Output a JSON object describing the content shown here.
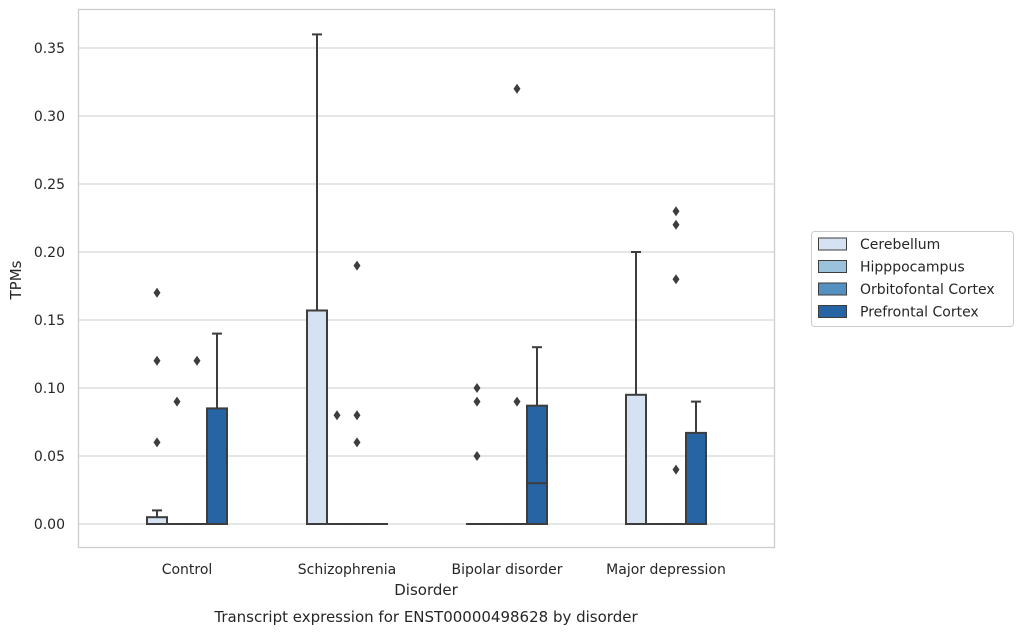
{
  "chart_data": {
    "type": "box",
    "title": "",
    "caption": "Transcript expression for ENST00000498628 by disorder",
    "xlabel": "Disorder",
    "ylabel": "TPMs",
    "ylim": [
      -0.017,
      0.378
    ],
    "yticks": [
      0.0,
      0.05,
      0.1,
      0.15,
      0.2,
      0.25,
      0.3,
      0.35
    ],
    "ytick_labels": [
      "0.00",
      "0.05",
      "0.10",
      "0.15",
      "0.20",
      "0.25",
      "0.30",
      "0.35"
    ],
    "grid": "horizontal",
    "legend_placement": "right",
    "categories": [
      "Control",
      "Schizophrenia",
      "Bipolar disorder",
      "Major depression"
    ],
    "series": [
      {
        "name": "Cerebellum",
        "color": "#d4e2f1",
        "boxes": [
          {
            "q1": 0.0,
            "median": 0.0,
            "q3": 0.005,
            "whisker_low": 0.0,
            "whisker_high": 0.01,
            "outliers": [
              0.06,
              0.12,
              0.17
            ]
          },
          {
            "q1": 0.0,
            "median": 0.0,
            "q3": 0.157,
            "whisker_low": 0.0,
            "whisker_high": 0.36,
            "outliers": []
          },
          {
            "q1": 0.0,
            "median": 0.0,
            "q3": 0.0,
            "whisker_low": 0.0,
            "whisker_high": 0.0,
            "outliers": [
              0.05,
              0.09,
              0.1
            ]
          },
          {
            "q1": 0.0,
            "median": 0.0,
            "q3": 0.095,
            "whisker_low": 0.0,
            "whisker_high": 0.2,
            "outliers": []
          }
        ]
      },
      {
        "name": "Hipppocampus",
        "color": "#9bc2db",
        "boxes": [
          {
            "q1": 0.0,
            "median": 0.0,
            "q3": 0.0,
            "whisker_low": 0.0,
            "whisker_high": 0.0,
            "outliers": [
              0.09
            ]
          },
          {
            "q1": 0.0,
            "median": 0.0,
            "q3": 0.0,
            "whisker_low": 0.0,
            "whisker_high": 0.0,
            "outliers": [
              0.08
            ]
          },
          {
            "q1": 0.0,
            "median": 0.0,
            "q3": 0.0,
            "whisker_low": 0.0,
            "whisker_high": 0.0,
            "outliers": []
          },
          {
            "q1": 0.0,
            "median": 0.0,
            "q3": 0.0,
            "whisker_low": 0.0,
            "whisker_high": 0.0,
            "outliers": []
          }
        ]
      },
      {
        "name": "Orbitofontal Cortex",
        "color": "#5591c0",
        "boxes": [
          {
            "q1": 0.0,
            "median": 0.0,
            "q3": 0.0,
            "whisker_low": 0.0,
            "whisker_high": 0.0,
            "outliers": [
              0.12
            ]
          },
          {
            "q1": 0.0,
            "median": 0.0,
            "q3": 0.0,
            "whisker_low": 0.0,
            "whisker_high": 0.0,
            "outliers": [
              0.06,
              0.08,
              0.19
            ]
          },
          {
            "q1": 0.0,
            "median": 0.0,
            "q3": 0.0,
            "whisker_low": 0.0,
            "whisker_high": 0.0,
            "outliers": [
              0.09,
              0.32
            ]
          },
          {
            "q1": 0.0,
            "median": 0.0,
            "q3": 0.0,
            "whisker_low": 0.0,
            "whisker_high": 0.0,
            "outliers": [
              0.04,
              0.18,
              0.22,
              0.23
            ]
          }
        ]
      },
      {
        "name": "Prefrontal Cortex",
        "color": "#2764a3",
        "boxes": [
          {
            "q1": 0.0,
            "median": 0.0,
            "q3": 0.085,
            "whisker_low": 0.0,
            "whisker_high": 0.14,
            "outliers": []
          },
          {
            "q1": 0.0,
            "median": 0.0,
            "q3": 0.0,
            "whisker_low": 0.0,
            "whisker_high": 0.0,
            "outliers": []
          },
          {
            "q1": 0.0,
            "median": 0.03,
            "q3": 0.087,
            "whisker_low": 0.0,
            "whisker_high": 0.13,
            "outliers": []
          },
          {
            "q1": 0.0,
            "median": 0.0,
            "q3": 0.067,
            "whisker_low": 0.0,
            "whisker_high": 0.09,
            "outliers": []
          }
        ]
      }
    ]
  }
}
